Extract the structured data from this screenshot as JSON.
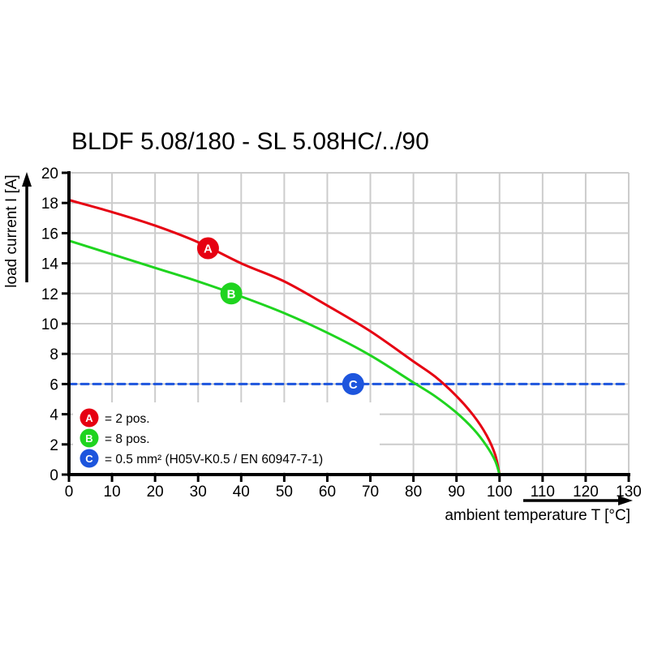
{
  "title": "BLDF 5.08/180 - SL 5.08HC/../90",
  "chart_data": {
    "type": "line",
    "title": "BLDF 5.08/180 - SL 5.08HC/../90",
    "xlabel": "ambient temperature T [°C]",
    "ylabel": "load current I [A]",
    "xlim": [
      0,
      130
    ],
    "ylim": [
      0,
      20
    ],
    "x_ticks": [
      0,
      10,
      20,
      30,
      40,
      50,
      60,
      70,
      80,
      90,
      100,
      110,
      120,
      130
    ],
    "y_ticks": [
      0,
      2,
      4,
      6,
      8,
      10,
      12,
      14,
      16,
      18,
      20
    ],
    "grid": true,
    "grid_color": "#cccccc",
    "legend_position": "bottom-left-inside",
    "series": [
      {
        "name": "A",
        "label": "= 2 pos.",
        "color": "#e60012",
        "style": "solid",
        "marker": {
          "letter": "A",
          "x": 32.3,
          "y": 15.0
        },
        "points": [
          [
            0,
            18.2
          ],
          [
            10,
            17.4
          ],
          [
            20,
            16.5
          ],
          [
            30,
            15.4
          ],
          [
            40,
            14.0
          ],
          [
            50,
            12.8
          ],
          [
            60,
            11.2
          ],
          [
            70,
            9.5
          ],
          [
            80,
            7.5
          ],
          [
            85,
            6.5
          ],
          [
            90,
            5.2
          ],
          [
            94,
            3.9
          ],
          [
            97,
            2.6
          ],
          [
            99,
            1.3
          ],
          [
            100,
            0
          ]
        ]
      },
      {
        "name": "B",
        "label": "= 8 pos.",
        "color": "#1fd41f",
        "style": "solid",
        "marker": {
          "letter": "B",
          "x": 37.7,
          "y": 12.0
        },
        "points": [
          [
            0,
            15.5
          ],
          [
            10,
            14.6
          ],
          [
            20,
            13.7
          ],
          [
            30,
            12.8
          ],
          [
            40,
            11.8
          ],
          [
            50,
            10.7
          ],
          [
            60,
            9.4
          ],
          [
            70,
            7.9
          ],
          [
            80,
            6.1
          ],
          [
            85,
            5.2
          ],
          [
            90,
            4.1
          ],
          [
            94,
            3.0
          ],
          [
            97,
            1.9
          ],
          [
            99,
            0.9
          ],
          [
            100,
            0
          ]
        ]
      },
      {
        "name": "C",
        "label": "= 0.5 mm² (H05V-K0.5 / EN 60947-7-1)",
        "color": "#1d55dd",
        "style": "dashed",
        "marker": {
          "letter": "C",
          "x": 66,
          "y": 6
        },
        "points": [
          [
            0,
            6
          ],
          [
            130,
            6
          ]
        ]
      }
    ]
  }
}
